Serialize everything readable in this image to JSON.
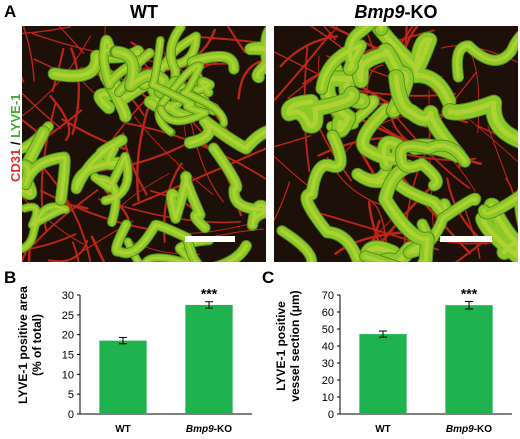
{
  "figure": {
    "panel_a": {
      "letter": "A",
      "wt_title": "WT",
      "ko_title_italic": "Bmp9",
      "ko_title_suffix": "-KO",
      "stain_red": "CD31",
      "stain_sep": " / ",
      "stain_green": "LYVE-1"
    },
    "panel_b": {
      "letter": "B",
      "ylabel_line1": "LYVE-1 positive area",
      "ylabel_line2": "(% of total)"
    },
    "panel_c": {
      "letter": "C",
      "ylabel_line1": "LYVE-1 positive",
      "ylabel_line2": "vessel section (μm)"
    }
  },
  "colors": {
    "bar": "#1fb34f",
    "red_stain": "#e03030",
    "green_stain": "#3fae2a"
  },
  "chart_data": [
    {
      "type": "bar",
      "panel": "B",
      "categories": [
        "WT",
        "Bmp9-KO"
      ],
      "values": [
        18.5,
        27.5
      ],
      "errors": [
        0.8,
        0.8
      ],
      "significance": [
        "",
        "***"
      ],
      "ylabel": "LYVE-1 positive area (% of total)",
      "ylim": [
        0,
        30
      ],
      "yticks": [
        0,
        5,
        10,
        15,
        20,
        25,
        30
      ]
    },
    {
      "type": "bar",
      "panel": "C",
      "categories": [
        "WT",
        "Bmp9-KO"
      ],
      "values": [
        47,
        64
      ],
      "errors": [
        1.8,
        2.2
      ],
      "significance": [
        "",
        "***"
      ],
      "ylabel": "LYVE-1 positive vessel section (μm)",
      "ylim": [
        0,
        70
      ],
      "yticks": [
        0,
        10,
        20,
        30,
        40,
        50,
        60,
        70
      ]
    }
  ]
}
